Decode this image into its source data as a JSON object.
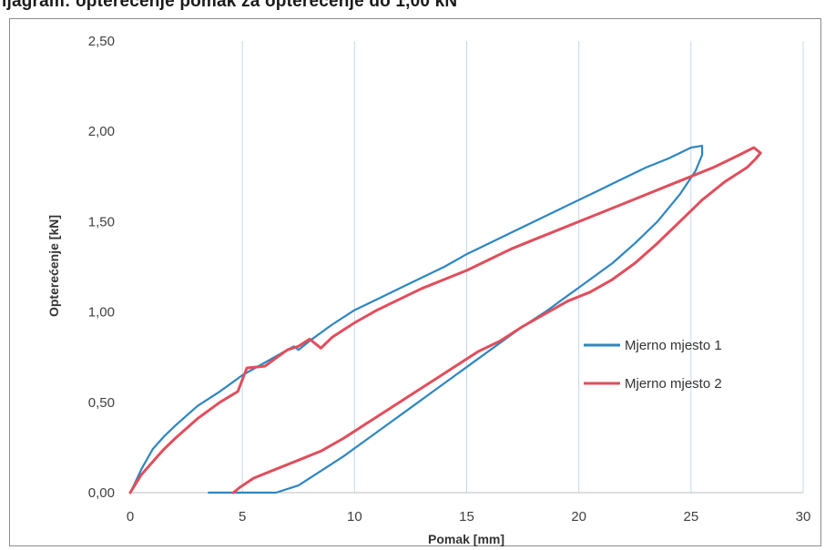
{
  "title": "ijagram: opterećenje pomak za opterećenje do 1,00 kN",
  "chart_data": {
    "type": "line",
    "xlabel": "Pomak [mm]",
    "ylabel": "Opterećenje [kN]",
    "xlim": [
      0,
      30
    ],
    "ylim": [
      0,
      2.5
    ],
    "x_ticks": [
      "0",
      "5",
      "10",
      "15",
      "20",
      "25",
      "30"
    ],
    "y_ticks": [
      "0,00",
      "0,50",
      "1,00",
      "1,50",
      "2,00",
      "2,50"
    ],
    "grid": "vertical",
    "legend_position": "right",
    "series": [
      {
        "name": "Mjerno mjesto 1",
        "color": "#2e86c1",
        "x": [
          0.0,
          0.2,
          0.5,
          1,
          1.5,
          2,
          3,
          4,
          5,
          6,
          7,
          7.3,
          7.5,
          8,
          9,
          10,
          11,
          12,
          13,
          14,
          15,
          16,
          17,
          18,
          19,
          20,
          21,
          22,
          23,
          24,
          25,
          25.5,
          25.5,
          25.2,
          24.5,
          23.5,
          22.5,
          21.5,
          20.5,
          19.5,
          18.5,
          17.5,
          16.5,
          15.5,
          14.5,
          13.5,
          12.5,
          11.5,
          10.5,
          9.5,
          8.5,
          7.5,
          6.5,
          5.5,
          4.5,
          4,
          3.5
        ],
        "y": [
          0.0,
          0.05,
          0.13,
          0.24,
          0.31,
          0.37,
          0.48,
          0.56,
          0.65,
          0.72,
          0.79,
          0.81,
          0.79,
          0.84,
          0.93,
          1.01,
          1.07,
          1.13,
          1.19,
          1.25,
          1.32,
          1.38,
          1.44,
          1.5,
          1.56,
          1.62,
          1.68,
          1.74,
          1.8,
          1.85,
          1.91,
          1.92,
          1.87,
          1.78,
          1.65,
          1.5,
          1.38,
          1.27,
          1.18,
          1.09,
          1.0,
          0.92,
          0.83,
          0.74,
          0.65,
          0.56,
          0.47,
          0.38,
          0.29,
          0.2,
          0.12,
          0.04,
          0.0,
          0.0,
          0.0,
          0.0,
          0.0
        ]
      },
      {
        "name": "Mjerno mjesto 2",
        "color": "#e04e5c",
        "x": [
          0.0,
          0.2,
          0.5,
          1,
          1.5,
          2,
          3,
          4,
          4.8,
          5.2,
          6,
          7,
          7.5,
          8,
          8.5,
          9,
          10,
          11,
          12,
          13,
          14,
          15,
          16,
          17,
          18,
          19,
          20,
          21,
          22,
          23,
          24,
          25,
          26,
          27,
          27.8,
          28.1,
          27.9,
          27.5,
          26.5,
          25.5,
          24.5,
          23.5,
          22.5,
          21.5,
          20.5,
          19.5,
          18.5,
          17.5,
          16.5,
          15.5,
          14.5,
          13.5,
          12.5,
          11.5,
          10.5,
          9.5,
          8.5,
          7.5,
          6.5,
          5.5,
          4.9,
          4.6
        ],
        "y": [
          0.0,
          0.04,
          0.1,
          0.17,
          0.24,
          0.3,
          0.41,
          0.5,
          0.56,
          0.69,
          0.7,
          0.79,
          0.81,
          0.85,
          0.8,
          0.86,
          0.94,
          1.01,
          1.07,
          1.13,
          1.18,
          1.23,
          1.29,
          1.35,
          1.4,
          1.45,
          1.5,
          1.55,
          1.6,
          1.65,
          1.7,
          1.75,
          1.8,
          1.86,
          1.91,
          1.88,
          1.85,
          1.8,
          1.72,
          1.62,
          1.5,
          1.38,
          1.27,
          1.18,
          1.11,
          1.06,
          0.99,
          0.92,
          0.84,
          0.78,
          0.7,
          0.62,
          0.54,
          0.46,
          0.38,
          0.3,
          0.23,
          0.18,
          0.13,
          0.08,
          0.03,
          0.0
        ]
      }
    ]
  }
}
